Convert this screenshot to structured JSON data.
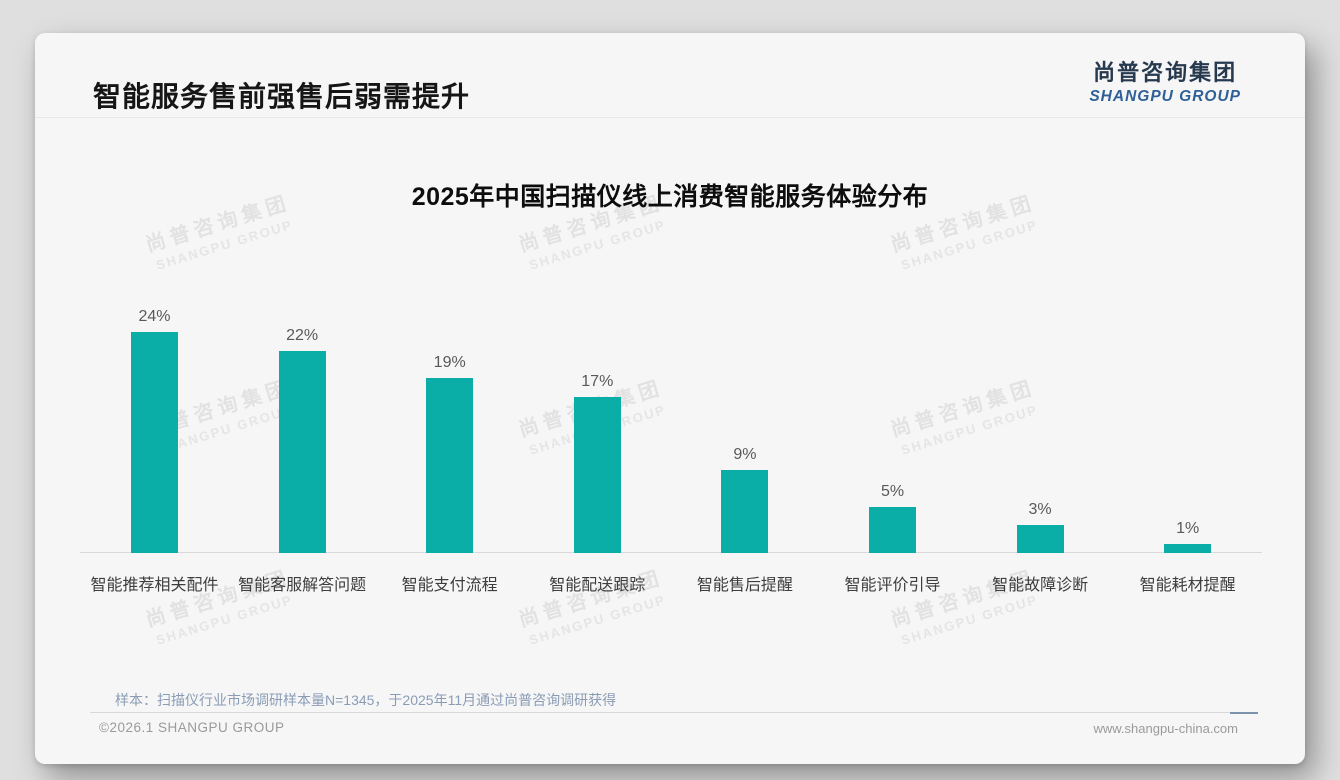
{
  "header": {
    "title": "智能服务售前强售后弱需提升"
  },
  "logo": {
    "cn": "尚普咨询集团",
    "en": "SHANGPU GROUP"
  },
  "watermark": {
    "cn": "尚普咨询集团",
    "en": "SHANGPU GROUP"
  },
  "chart_data": {
    "type": "bar",
    "title": "2025年中国扫描仪线上消费智能服务体验分布",
    "categories": [
      "智能推荐相关配件",
      "智能客服解答问题",
      "智能支付流程",
      "智能配送跟踪",
      "智能售后提醒",
      "智能评价引导",
      "智能故障诊断",
      "智能耗材提醒"
    ],
    "values": [
      24,
      22,
      19,
      17,
      9,
      5,
      3,
      1
    ],
    "value_labels": [
      "24%",
      "22%",
      "19%",
      "17%",
      "9%",
      "5%",
      "3%",
      "1%"
    ],
    "unit": "%",
    "bar_color": "#0bada7",
    "axis_color": "#d9d9d9",
    "ylim": [
      0,
      26
    ],
    "grid": false,
    "legend": "none",
    "xlabel": "",
    "ylabel": ""
  },
  "footnote": {
    "sample_note": "样本：扫描仪行业市场调研样本量N=1345，于2025年11月通过尚普咨询调研获得"
  },
  "footer": {
    "copyright": "©2026.1 SHANGPU GROUP",
    "website": "www.shangpu-china.com"
  },
  "colors": {
    "bar": "#0bada7",
    "logo_cn": "#27394f",
    "logo_en": "#2e6096",
    "note": "#8a9cb5"
  }
}
